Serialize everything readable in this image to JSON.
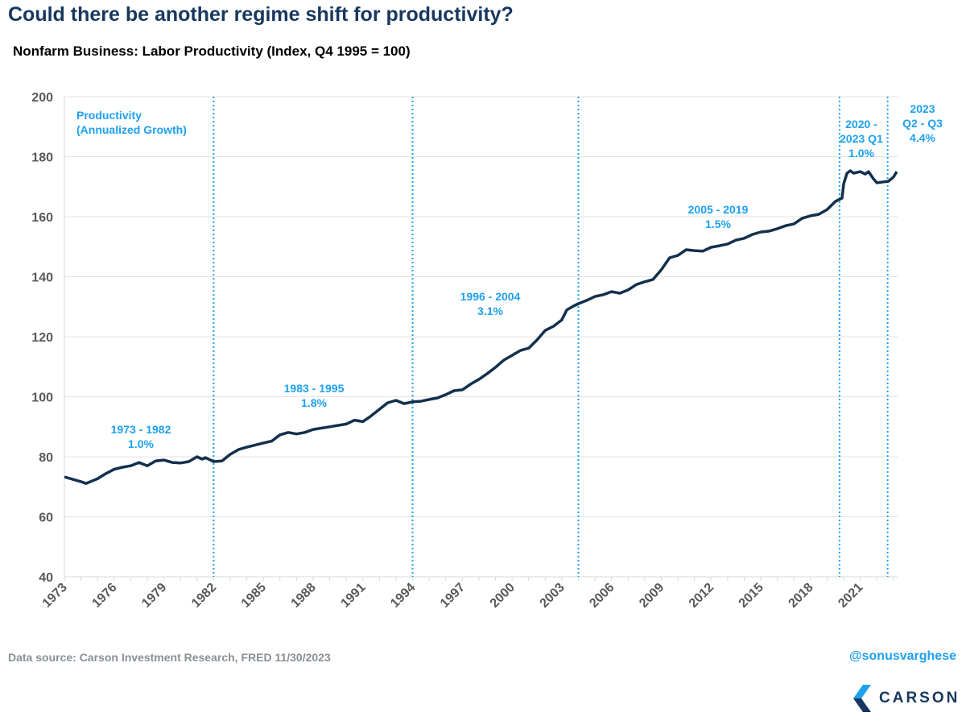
{
  "header": {
    "title": "Could there be another regime shift for productivity?",
    "subtitle": "Nonfarm Business: Labor Productivity (Index, Q4 1995 = 100)"
  },
  "footer": {
    "source": "Data source: Carson Investment Research, FRED   11/30/2023",
    "handle": "@sonusvarghese",
    "logo_text": "CARSON"
  },
  "colors": {
    "line": "#13304d",
    "annotation": "#1ea0f0",
    "title": "#17375e",
    "grid": "#e3e3e3"
  },
  "chart_data": {
    "type": "line",
    "title": "Nonfarm Business: Labor Productivity (Index, Q4 1995 = 100)",
    "xlabel": "",
    "ylabel": "",
    "xlim": [
      1973,
      2023.25
    ],
    "ylim": [
      40,
      200
    ],
    "yticks": [
      40,
      60,
      80,
      100,
      120,
      140,
      160,
      180,
      200
    ],
    "xticks": [
      "1973",
      "1976",
      "1979",
      "1982",
      "1985",
      "1988",
      "1991",
      "1994",
      "1997",
      "2000",
      "2003",
      "2006",
      "2009",
      "2012",
      "2015",
      "2018",
      "2021"
    ],
    "grid": "horizontal",
    "legend": "none",
    "x": [
      1973.0,
      1974.0,
      1974.3,
      1975.0,
      1975.5,
      1976.0,
      1976.5,
      1977.0,
      1977.5,
      1978.0,
      1978.5,
      1979.0,
      1979.5,
      1980.0,
      1980.5,
      1981.0,
      1981.3,
      1981.5,
      1982.0,
      1982.5,
      1983.0,
      1983.5,
      1984.0,
      1985.0,
      1985.5,
      1986.0,
      1986.5,
      1987.0,
      1987.5,
      1988.0,
      1989.0,
      1990.0,
      1990.5,
      1991.0,
      1991.5,
      1992.0,
      1992.5,
      1993.0,
      1993.5,
      1994.0,
      1994.5,
      1995.0,
      1995.5,
      1996.0,
      1996.5,
      1997.0,
      1997.5,
      1998.0,
      1998.5,
      1999.0,
      1999.5,
      2000.0,
      2000.5,
      2001.0,
      2001.5,
      2002.0,
      2002.5,
      2003.0,
      2003.3,
      2003.7,
      2004.0,
      2004.5,
      2005.0,
      2005.5,
      2006.0,
      2006.5,
      2007.0,
      2007.5,
      2008.0,
      2008.5,
      2009.0,
      2009.5,
      2010.0,
      2010.5,
      2011.0,
      2011.5,
      2012.0,
      2012.5,
      2013.0,
      2013.5,
      2014.0,
      2014.5,
      2015.0,
      2015.5,
      2016.0,
      2016.5,
      2017.0,
      2017.5,
      2018.0,
      2018.5,
      2019.0,
      2019.5,
      2019.9,
      2020.0,
      2020.2,
      2020.4,
      2020.6,
      2021.0,
      2021.3,
      2021.5,
      2021.8,
      2022.0,
      2022.4,
      2022.7,
      2023.0,
      2023.2
    ],
    "values": [
      73.3,
      71.7,
      71.1,
      72.7,
      74.4,
      75.8,
      76.5,
      77.0,
      78.1,
      77.0,
      78.6,
      78.9,
      78.1,
      77.9,
      78.4,
      80.0,
      79.2,
      79.7,
      78.4,
      78.6,
      80.8,
      82.4,
      83.2,
      84.6,
      85.2,
      87.3,
      88.1,
      87.6,
      88.1,
      89.1,
      90.0,
      90.9,
      92.2,
      91.7,
      93.6,
      95.8,
      98.0,
      98.8,
      97.7,
      98.3,
      98.5,
      99.1,
      99.6,
      100.7,
      102.0,
      102.3,
      104.2,
      105.8,
      107.7,
      109.8,
      112.2,
      113.8,
      115.4,
      116.2,
      118.9,
      122.1,
      123.5,
      125.6,
      128.9,
      130.2,
      131.0,
      132.1,
      133.4,
      134.0,
      135.0,
      134.5,
      135.6,
      137.4,
      138.3,
      139.1,
      142.3,
      146.3,
      147.1,
      149.0,
      148.7,
      148.5,
      149.8,
      150.3,
      150.9,
      152.2,
      152.8,
      154.1,
      154.9,
      155.2,
      156.0,
      157.0,
      157.6,
      159.5,
      160.3,
      160.8,
      162.4,
      165.1,
      166.2,
      171.0,
      174.5,
      175.3,
      174.5,
      175.0,
      174.2,
      175.0,
      172.6,
      171.3,
      171.6,
      171.8,
      173.2,
      175.0
    ],
    "regime_lines": [
      1982.0,
      1994.0,
      2004.0,
      2019.75,
      2022.65
    ],
    "annotations": [
      {
        "lines": [
          "Productivity",
          "(Annualized Growth)"
        ]
      },
      {
        "lines": [
          "1973 - 1982",
          "1.0%"
        ]
      },
      {
        "lines": [
          "1983 - 1995",
          "1.8%"
        ]
      },
      {
        "lines": [
          "1996 - 2004",
          "3.1%"
        ]
      },
      {
        "lines": [
          "2005 - 2019",
          "1.5%"
        ]
      },
      {
        "lines": [
          "2020 -",
          "2023 Q1",
          "1.0%"
        ]
      },
      {
        "lines": [
          "2023",
          "Q2 - Q3",
          "4.4%"
        ]
      }
    ]
  }
}
